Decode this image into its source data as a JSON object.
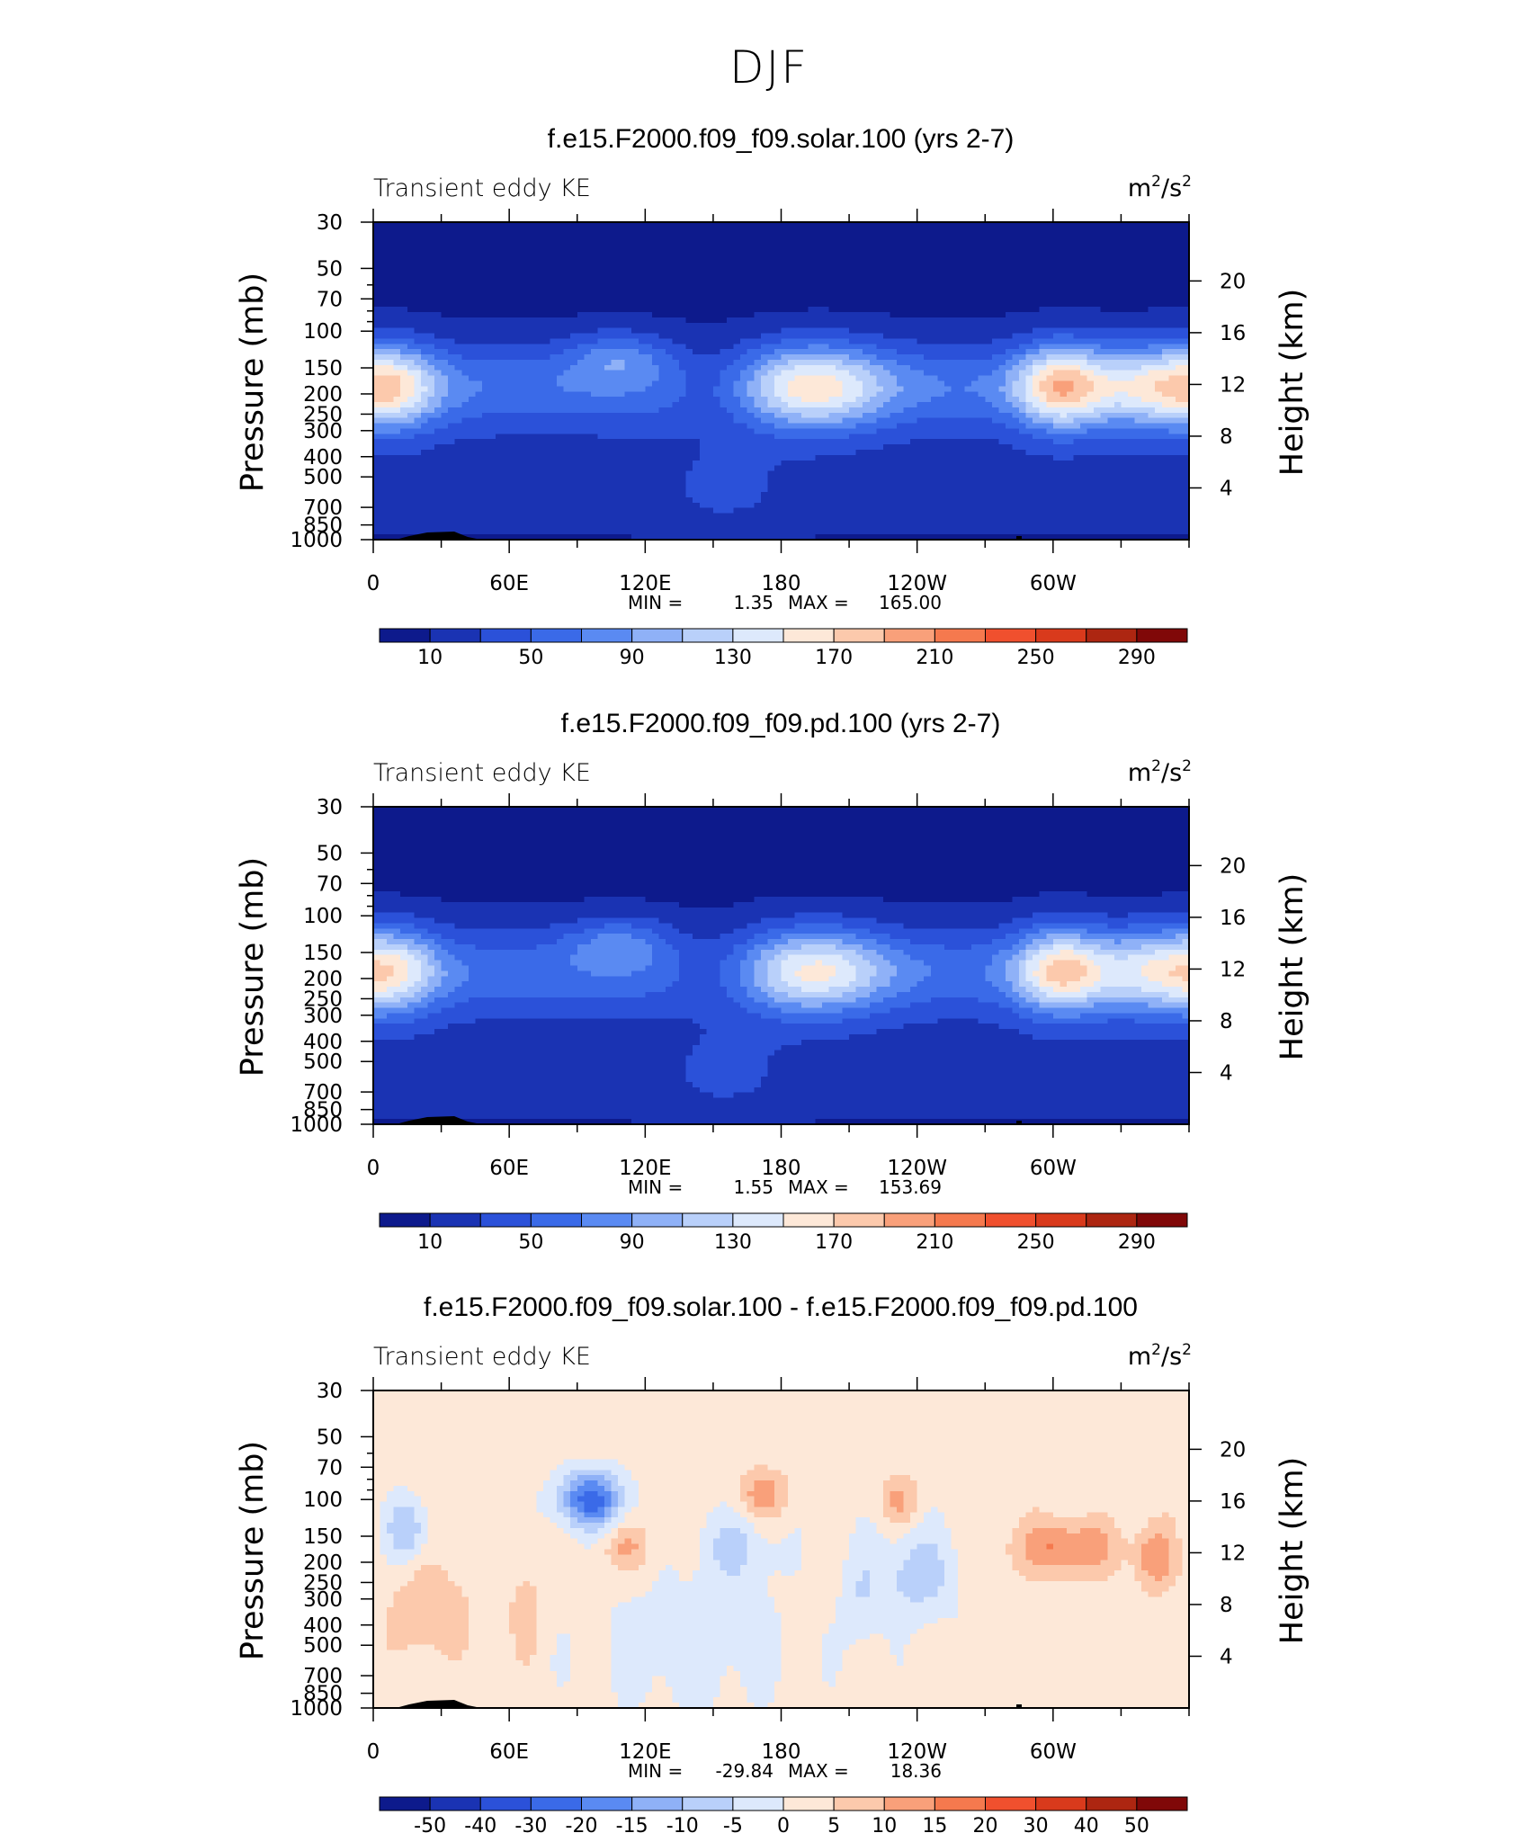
{
  "figure_title": "DJF",
  "chart_data": [
    {
      "type": "heatmap",
      "title": "f.e15.F2000.f09_f09.solar.100 (yrs 2-7)",
      "left_subtitle": "Transient eddy KE",
      "units_base": "m",
      "units_mid": "/s",
      "units_exp": "2",
      "ylabel_left": "Pressure (mb)",
      "ylabel_right": "Height (km)",
      "pressure_ticks": [
        "30",
        "50",
        "70",
        "100",
        "150",
        "200",
        "250",
        "300",
        "400",
        "500",
        "700",
        "850",
        "1000"
      ],
      "height_ticks": [
        "20",
        "16",
        "12",
        "8",
        "4"
      ],
      "xticks": [
        "0",
        "60E",
        "120E",
        "180",
        "120W",
        "60W"
      ],
      "xlim": [
        0,
        360
      ],
      "min_label": "MIN =",
      "min_value": "1.35",
      "max_label": "MAX =",
      "max_value": "165.00",
      "colorbar_labels": [
        "10",
        "50",
        "90",
        "130",
        "170",
        "210",
        "250",
        "290"
      ],
      "colorbar_colors": [
        "#0d1a8c",
        "#1a33b3",
        "#2b51d9",
        "#3a6ae8",
        "#5a8af2",
        "#8fb1f7",
        "#b9d0fa",
        "#dde9fc",
        "#fde8d8",
        "#fcc9ac",
        "#f9a07a",
        "#f5794e",
        "#f0502e",
        "#d93a1c",
        "#ad2611",
        "#800808"
      ],
      "field": "full"
    },
    {
      "type": "heatmap",
      "title": "f.e15.F2000.f09_f09.pd.100 (yrs 2-7)",
      "left_subtitle": "Transient eddy KE",
      "units_base": "m",
      "units_mid": "/s",
      "units_exp": "2",
      "ylabel_left": "Pressure (mb)",
      "ylabel_right": "Height (km)",
      "pressure_ticks": [
        "30",
        "50",
        "70",
        "100",
        "150",
        "200",
        "250",
        "300",
        "400",
        "500",
        "700",
        "850",
        "1000"
      ],
      "height_ticks": [
        "20",
        "16",
        "12",
        "8",
        "4"
      ],
      "xticks": [
        "0",
        "60E",
        "120E",
        "180",
        "120W",
        "60W"
      ],
      "xlim": [
        0,
        360
      ],
      "min_label": "MIN =",
      "min_value": "1.55",
      "max_label": "MAX =",
      "max_value": "153.69",
      "colorbar_labels": [
        "10",
        "50",
        "90",
        "130",
        "170",
        "210",
        "250",
        "290"
      ],
      "colorbar_colors": [
        "#0d1a8c",
        "#1a33b3",
        "#2b51d9",
        "#3a6ae8",
        "#5a8af2",
        "#8fb1f7",
        "#b9d0fa",
        "#dde9fc",
        "#fde8d8",
        "#fcc9ac",
        "#f9a07a",
        "#f5794e",
        "#f0502e",
        "#d93a1c",
        "#ad2611",
        "#800808"
      ],
      "field": "full"
    },
    {
      "type": "heatmap",
      "title": "f.e15.F2000.f09_f09.solar.100 - f.e15.F2000.f09_f09.pd.100",
      "left_subtitle": "Transient eddy KE",
      "units_base": "m",
      "units_mid": "/s",
      "units_exp": "2",
      "ylabel_left": "Pressure (mb)",
      "ylabel_right": "Height (km)",
      "pressure_ticks": [
        "30",
        "50",
        "70",
        "100",
        "150",
        "200",
        "250",
        "300",
        "400",
        "500",
        "700",
        "850",
        "1000"
      ],
      "height_ticks": [
        "20",
        "16",
        "12",
        "8",
        "4"
      ],
      "xticks": [
        "0",
        "60E",
        "120E",
        "180",
        "120W",
        "60W"
      ],
      "xlim": [
        0,
        360
      ],
      "min_label": "MIN =",
      "min_value": "-29.84",
      "max_label": "MAX =",
      "max_value": "18.36",
      "colorbar_labels": [
        "-50",
        "-40",
        "-30",
        "-20",
        "-15",
        "-10",
        "-5",
        "0",
        "5",
        "10",
        "15",
        "20",
        "30",
        "40",
        "50"
      ],
      "colorbar_colors": [
        "#0d1a8c",
        "#1a33b3",
        "#2b51d9",
        "#3a6ae8",
        "#5a8af2",
        "#8fb1f7",
        "#b9d0fa",
        "#dde9fc",
        "#fde8d8",
        "#fcc9ac",
        "#f9a07a",
        "#f5794e",
        "#f0502e",
        "#d93a1c",
        "#ad2611",
        "#800808"
      ],
      "field": "diff"
    }
  ]
}
